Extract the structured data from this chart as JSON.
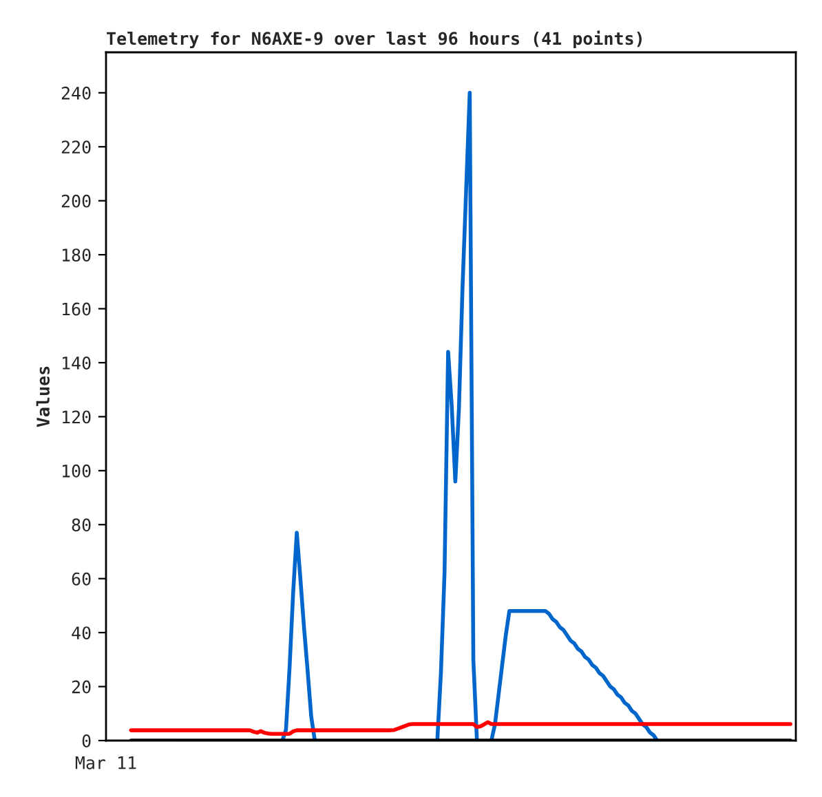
{
  "chart_data": {
    "type": "line",
    "title": "Telemetry for N6AXE-9 over last 96 hours (41 points)",
    "ylabel": "Values",
    "annotations": [
      "Mar 11"
    ],
    "categories": [
      null,
      null,
      null,
      null,
      null,
      null,
      null,
      null,
      null,
      null,
      null,
      null,
      null,
      null,
      null,
      null,
      null,
      null,
      null,
      null,
      null,
      null,
      null,
      null,
      null,
      null,
      null,
      null,
      null,
      null,
      null,
      null,
      null,
      null,
      null,
      null,
      null,
      null,
      null,
      null,
      null,
      null,
      null,
      null,
      null,
      null,
      null,
      null,
      null,
      null,
      null,
      null,
      null,
      null,
      null,
      null,
      null,
      null,
      null,
      null,
      null,
      null,
      null,
      null,
      null,
      null,
      null,
      null,
      null,
      null,
      null,
      null,
      null,
      null,
      null,
      null,
      null,
      null,
      null,
      null,
      null,
      null,
      null,
      null,
      null,
      null,
      null,
      null,
      null,
      null,
      null,
      null,
      null,
      null,
      null,
      null,
      null,
      null,
      null,
      null,
      null,
      null,
      null,
      null,
      null,
      null,
      null,
      null,
      null,
      null,
      null,
      null,
      null,
      null,
      null,
      null,
      null,
      null,
      null,
      null,
      null,
      null,
      null,
      null,
      null,
      null,
      null,
      null,
      null,
      null,
      null,
      null,
      null,
      null,
      null,
      null,
      null,
      null,
      null,
      null,
      null,
      null,
      null,
      null,
      null,
      null,
      null,
      null,
      null,
      null,
      null,
      null,
      null,
      null,
      null,
      null,
      null,
      null,
      null,
      null,
      null,
      null,
      null,
      null,
      null,
      null,
      null,
      null,
      null,
      null,
      null,
      null,
      null,
      null,
      null,
      null,
      null,
      null,
      null,
      null,
      null,
      null,
      null,
      null
    ],
    "ylim": [
      0,
      255
    ],
    "yticks": [
      0,
      20,
      40,
      60,
      80,
      100,
      120,
      140,
      160,
      180,
      200,
      220,
      240
    ],
    "grid": false,
    "marker": "none",
    "line_style": "solid",
    "series": [
      {
        "color": "#000000",
        "values": [
          0,
          0,
          0,
          0,
          0,
          0,
          0,
          0,
          0,
          0,
          0,
          0,
          0,
          0,
          0,
          0,
          0,
          0,
          0,
          0,
          0,
          0,
          0,
          0,
          0,
          0,
          0,
          0,
          0,
          0,
          0,
          0,
          0,
          0,
          0,
          0,
          0,
          0,
          0,
          0,
          0,
          0,
          0,
          0,
          0,
          0,
          0,
          0,
          0,
          0,
          0,
          0,
          0,
          0,
          0,
          0,
          0,
          0,
          0,
          0,
          0,
          0,
          0,
          0,
          0,
          0,
          0,
          0,
          0,
          0,
          0,
          0,
          0,
          0,
          0,
          0,
          0,
          0,
          0,
          0,
          0,
          0,
          0,
          0,
          0,
          0,
          0,
          0,
          0,
          0,
          0,
          0,
          0,
          0,
          0,
          0,
          0,
          0,
          0,
          0,
          0,
          0,
          0,
          0,
          0,
          0,
          0,
          0,
          0,
          0,
          0,
          0,
          0,
          0,
          0,
          0,
          0,
          0,
          0,
          0,
          0,
          0,
          0,
          0,
          0,
          0,
          0,
          0,
          0,
          0,
          0,
          0,
          0,
          0,
          0,
          0,
          0,
          0,
          0,
          0,
          0,
          0,
          0,
          0,
          0,
          0,
          0,
          0,
          0,
          0,
          0,
          0,
          0,
          0,
          0,
          0,
          0,
          0,
          0,
          0,
          0,
          0,
          0,
          0,
          0,
          0,
          0,
          0,
          0,
          0,
          0,
          0,
          0,
          0,
          0,
          0,
          0,
          0,
          0,
          0,
          0,
          0,
          0,
          0
        ]
      },
      {
        "color": "#ff0000",
        "values": [
          3.8,
          3.8,
          3.8,
          3.8,
          3.8,
          3.8,
          3.8,
          3.8,
          3.8,
          3.8,
          3.8,
          3.8,
          3.8,
          3.8,
          3.8,
          3.8,
          3.8,
          3.8,
          3.8,
          3.8,
          3.8,
          3.8,
          3.8,
          3.8,
          3.8,
          3.8,
          3.8,
          3.8,
          3.8,
          3.8,
          3.8,
          3.8,
          3.8,
          3.8,
          3.3,
          2.9,
          3.5,
          2.9,
          2.6,
          2.5,
          2.5,
          2.5,
          2.5,
          2.5,
          2.5,
          3.4,
          3.8,
          3.8,
          3.8,
          3.8,
          3.8,
          3.8,
          3.8,
          3.8,
          3.8,
          3.8,
          3.8,
          3.8,
          3.8,
          3.8,
          3.8,
          3.8,
          3.8,
          3.8,
          3.8,
          3.8,
          3.8,
          3.8,
          3.8,
          3.8,
          3.8,
          3.8,
          3.8,
          3.9,
          4.4,
          4.9,
          5.4,
          5.9,
          6.1,
          6.1,
          6.1,
          6.1,
          6.1,
          6.1,
          6.1,
          6.1,
          6.1,
          6.1,
          6.1,
          6.1,
          6.1,
          6.1,
          6.1,
          6.1,
          6.1,
          6.1,
          5.0,
          5.3,
          6.0,
          6.8,
          6.1,
          6.1,
          6.1,
          6.1,
          6.1,
          6.1,
          6.1,
          6.1,
          6.1,
          6.1,
          6.1,
          6.1,
          6.1,
          6.1,
          6.1,
          6.1,
          6.1,
          6.1,
          6.1,
          6.1,
          6.1,
          6.1,
          6.1,
          6.1,
          6.1,
          6.1,
          6.1,
          6.1,
          6.1,
          6.1,
          6.1,
          6.1,
          6.1,
          6.1,
          6.1,
          6.1,
          6.1,
          6.1,
          6.1,
          6.1,
          6.1,
          6.1,
          6.1,
          6.1,
          6.1,
          6.1,
          6.1,
          6.1,
          6.1,
          6.1,
          6.1,
          6.1,
          6.1,
          6.1,
          6.1,
          6.1,
          6.1,
          6.1,
          6.1,
          6.1,
          6.1,
          6.1,
          6.1,
          6.1,
          6.1,
          6.1,
          6.1,
          6.1,
          6.1,
          6.1,
          6.1,
          6.1,
          6.1,
          6.1,
          6.1,
          6.1,
          6.1,
          6.1,
          6.1,
          6.1,
          6.1,
          6.1,
          6.1,
          6.1
        ]
      },
      {
        "color": "#0066cc",
        "values": [
          null,
          null,
          null,
          null,
          null,
          null,
          null,
          null,
          null,
          null,
          null,
          null,
          null,
          null,
          null,
          null,
          null,
          null,
          null,
          null,
          null,
          null,
          null,
          null,
          null,
          null,
          null,
          null,
          null,
          null,
          null,
          null,
          null,
          null,
          null,
          null,
          null,
          null,
          null,
          null,
          null,
          null,
          0,
          4,
          27,
          55,
          77,
          60,
          42,
          26,
          9,
          0,
          null,
          null,
          null,
          null,
          null,
          null,
          null,
          null,
          null,
          null,
          null,
          null,
          null,
          null,
          null,
          null,
          null,
          null,
          null,
          null,
          null,
          null,
          null,
          null,
          null,
          null,
          null,
          null,
          null,
          null,
          null,
          null,
          null,
          0,
          25,
          62,
          144,
          124,
          96,
          123,
          168,
          204,
          240,
          30,
          0,
          null,
          null,
          null,
          0,
          6,
          17,
          28,
          39,
          48,
          48,
          48,
          48,
          48,
          48,
          48,
          48,
          48,
          48,
          48,
          47,
          45,
          44,
          42,
          41,
          39,
          37,
          36,
          34,
          33,
          31,
          30,
          28,
          27,
          25,
          24,
          22,
          20,
          19,
          17,
          16,
          14,
          13,
          11,
          10,
          8,
          6,
          5,
          3,
          2,
          0,
          null,
          null,
          null,
          null,
          null,
          null,
          null,
          null,
          null,
          null,
          null,
          null,
          null,
          null,
          null,
          null,
          null,
          null,
          null,
          null,
          null,
          null,
          null,
          null,
          null,
          null,
          null,
          null,
          null,
          null,
          null,
          null,
          null,
          null,
          null,
          null,
          null
        ]
      }
    ]
  }
}
